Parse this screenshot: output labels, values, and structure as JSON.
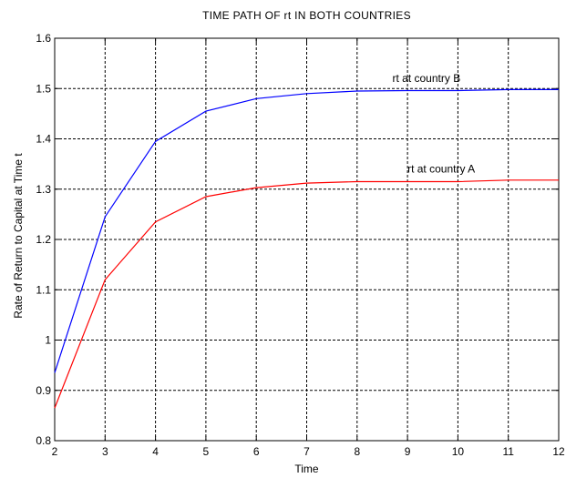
{
  "chart_data": {
    "type": "line",
    "title": "TIME PATH OF rt IN BOTH COUNTRIES",
    "xlabel": "Time",
    "ylabel": "Rate of Return to Capital at Time t",
    "xlim": [
      2,
      12
    ],
    "ylim": [
      0.8,
      1.6
    ],
    "xticks": [
      "2",
      "3",
      "4",
      "5",
      "6",
      "7",
      "8",
      "9",
      "10",
      "11",
      "12"
    ],
    "yticks": [
      "0.8",
      "0.9",
      "1",
      "1.1",
      "1.2",
      "1.3",
      "1.4",
      "1.5",
      "1.6"
    ],
    "grid": true,
    "x": [
      2,
      3,
      4,
      5,
      6,
      7,
      8,
      9,
      10,
      11,
      12
    ],
    "series": [
      {
        "color": "#0000ff",
        "values": [
          0.935,
          1.245,
          1.395,
          1.455,
          1.48,
          1.49,
          1.495,
          1.496,
          1.496,
          1.498,
          1.498
        ]
      },
      {
        "color": "#ff0000",
        "values": [
          0.865,
          1.12,
          1.235,
          1.285,
          1.303,
          1.312,
          1.315,
          1.315,
          1.315,
          1.318,
          1.318
        ]
      }
    ],
    "annotations": [
      {
        "text": "rt at country B",
        "x": 8.7,
        "y": 1.52
      },
      {
        "text": "rt at country A",
        "x": 9.0,
        "y": 1.34
      }
    ]
  }
}
